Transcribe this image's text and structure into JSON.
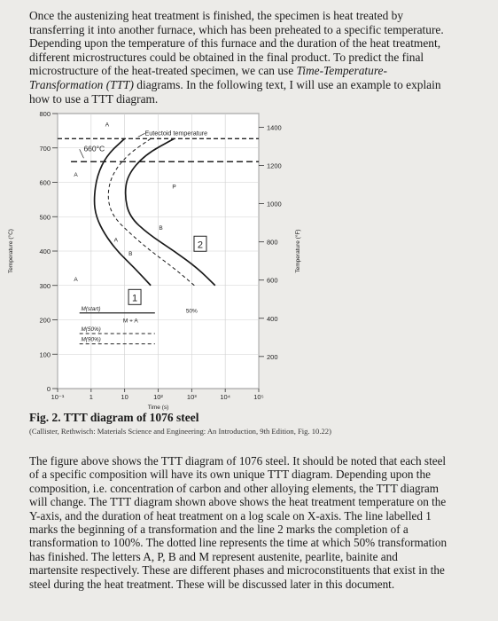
{
  "document": {
    "paragraph1_lines": [
      "Once the austenizing heat treatment is finished, the specimen is heat treated by",
      "transferring it into another furnace, which has been preheated to a specific temperature.",
      "Depending upon the temperature of this furnace and the duration of the heat treatment,",
      "different microstructures could be obtained in the final product. To predict the final",
      "microstructure of the heat-treated specimen, we can use ",
      "Transformation (TTT)",
      " diagrams. In the following text, I will use an example to explain",
      "how to use a TTT diagram."
    ],
    "p1_italic_a": "Time-Temperature-",
    "figure_title": "Fig. 2. TTT diagram of 1076 steel",
    "figure_citation": "(Callister, Rethwisch: Materials Science and Engineering: An Introduction, 9th Edition, Fig. 10.22)",
    "paragraph2_lines": [
      "The figure above shows the TTT diagram of 1076 steel. It should be noted that each steel",
      "of a specific composition will have its own unique TTT diagram. Depending upon the",
      "composition, i.e. concentration of carbon and other alloying elements, the TTT diagram",
      "will change. The TTT diagram shown above shows the heat treatment temperature on the",
      "Y-axis, and the duration of heat treatment on a log scale on X-axis. The line labelled 1",
      "marks the beginning of a transformation and the line 2 marks the completion of a",
      "transformation to 100%. The dotted line represents the time at which 50% transformation",
      "has finished. The letters A, P, B and M represent austenite, pearlite, bainite and",
      "martensite respectively. These are different phases and microconstituents that exist in the",
      "steel during the heat treatment. These will be discussed later in this document."
    ]
  },
  "chart_data": {
    "type": "line",
    "xscale": "log",
    "xlabel": "Time (s)",
    "ylabel_left": "Temperature (°C)",
    "ylabel_right": "Temperature (°F)",
    "xlim": [
      0.1,
      100000
    ],
    "ylim": [
      0,
      800
    ],
    "x_ticks": [
      {
        "v": 0.1,
        "label": "10⁻¹"
      },
      {
        "v": 1,
        "label": "1"
      },
      {
        "v": 10,
        "label": "10"
      },
      {
        "v": 100,
        "label": "10²"
      },
      {
        "v": 1000,
        "label": "10³"
      },
      {
        "v": 10000,
        "label": "10⁴"
      },
      {
        "v": 100000,
        "label": "10⁵"
      }
    ],
    "y_ticks_c": [
      0,
      100,
      200,
      300,
      400,
      500,
      600,
      700,
      800
    ],
    "y_ticks_f": [
      200,
      400,
      600,
      800,
      1000,
      1200,
      1400
    ],
    "series": [
      {
        "name": "1",
        "style": "solid",
        "x": [
          10,
          3,
          1.5,
          1.2,
          1.4,
          2.5,
          6,
          20,
          60
        ],
        "y": [
          727,
          680,
          620,
          550,
          500,
          450,
          400,
          350,
          300
        ]
      },
      {
        "name": "2",
        "style": "solid",
        "x": [
          300,
          40,
          12,
          10,
          14,
          50,
          300,
          1500,
          5000
        ],
        "y": [
          727,
          680,
          620,
          560,
          500,
          450,
          400,
          350,
          300
        ]
      },
      {
        "name": "50%",
        "style": "dashed",
        "x": [
          60,
          12,
          4,
          3,
          4.5,
          15,
          60,
          300,
          1200
        ],
        "y": [
          727,
          680,
          620,
          555,
          500,
          450,
          400,
          350,
          300
        ]
      }
    ],
    "horizontal_lines": [
      {
        "label": "Eutectoid temperature",
        "y": 727,
        "style": "dashed"
      },
      {
        "label": "M(start)",
        "y": 220,
        "style": "solid"
      },
      {
        "label": "M(50%)",
        "y": 160,
        "style": "dashed"
      },
      {
        "label": "M(90%)",
        "y": 130,
        "style": "dashed"
      }
    ],
    "isotherm": {
      "label": "660°C",
      "y": 660
    },
    "annotations": [
      {
        "text": "A",
        "x": 3,
        "y": 770
      },
      {
        "text": "A",
        "x": 0.35,
        "y": 625
      },
      {
        "text": "A",
        "x": 0.35,
        "y": 320
      },
      {
        "text": "A",
        "x": 5.5,
        "y": 435
      },
      {
        "text": "P",
        "x": 300,
        "y": 590
      },
      {
        "text": "B",
        "x": 120,
        "y": 470
      },
      {
        "text": "B",
        "x": 15,
        "y": 395
      },
      {
        "text": "M + A",
        "x": 15,
        "y": 200
      },
      {
        "text": "50%",
        "x": 1000,
        "y": 228
      },
      {
        "text": "1",
        "x": 20,
        "y": 265,
        "boxed": true
      },
      {
        "text": "2",
        "x": 1800,
        "y": 420,
        "boxed": true
      }
    ]
  }
}
